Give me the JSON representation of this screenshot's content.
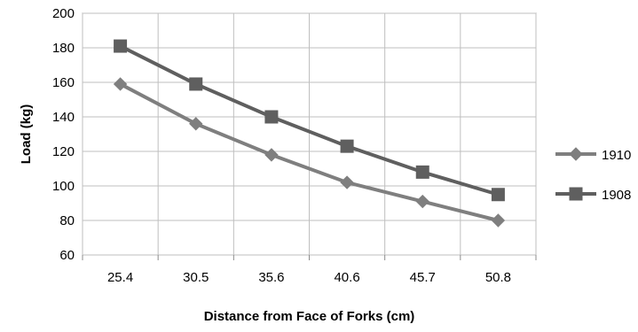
{
  "chart_data": {
    "type": "line",
    "x_categories": [
      "25.4",
      "30.5",
      "35.6",
      "40.6",
      "45.7",
      "50.8"
    ],
    "series": [
      {
        "name": "1910",
        "marker": "diamond",
        "color": "#7f7f7f",
        "values": [
          159,
          136,
          118,
          102,
          91,
          80
        ]
      },
      {
        "name": "1908",
        "marker": "square",
        "color": "#5f5f5f",
        "values": [
          181,
          159,
          140,
          123,
          108,
          95
        ]
      }
    ],
    "xlabel": "Distance  from Face of Forks (cm)",
    "ylabel": "Load  (kg)",
    "ylim": [
      60,
      200
    ],
    "yticks": [
      "60",
      "80",
      "100",
      "120",
      "140",
      "160",
      "180",
      "200"
    ],
    "grid": true,
    "legend": "right"
  }
}
